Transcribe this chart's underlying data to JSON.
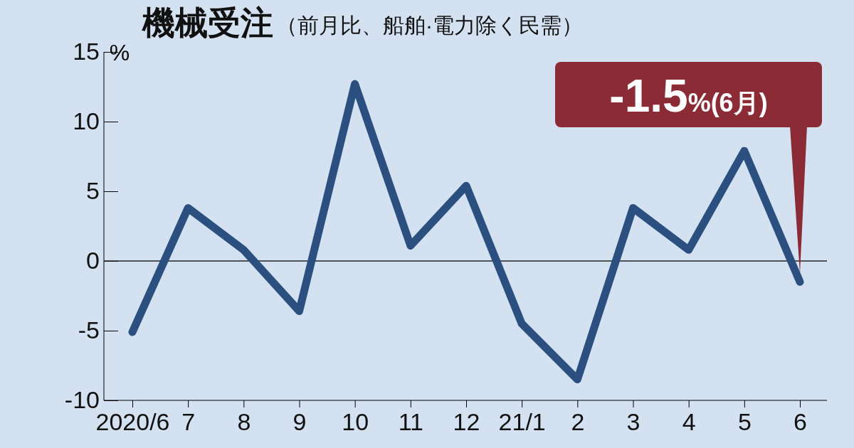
{
  "chart_data": {
    "type": "line",
    "title": "機械受注",
    "subtitle": "（前月比、船舶·電力除く民需）",
    "ylabel": "%",
    "categories": [
      "2020/6",
      "7",
      "8",
      "9",
      "10",
      "11",
      "12",
      "21/1",
      "2",
      "3",
      "4",
      "5",
      "6"
    ],
    "series": [
      {
        "color": "#2b5080",
        "values": [
          -5.1,
          3.8,
          0.8,
          -3.6,
          12.7,
          1.1,
          5.4,
          -4.5,
          -8.5,
          3.8,
          0.8,
          7.9,
          -1.5
        ]
      }
    ],
    "ylim": [
      -10,
      15
    ],
    "yticks": [
      -10,
      -5,
      0,
      5,
      10,
      15
    ],
    "ref_lines": [
      {
        "axis": "y",
        "value": 0,
        "color": "#222222"
      }
    ],
    "annotations": [
      "-1.5%(6月)"
    ],
    "marker": "none",
    "line_style": "solid"
  }
}
